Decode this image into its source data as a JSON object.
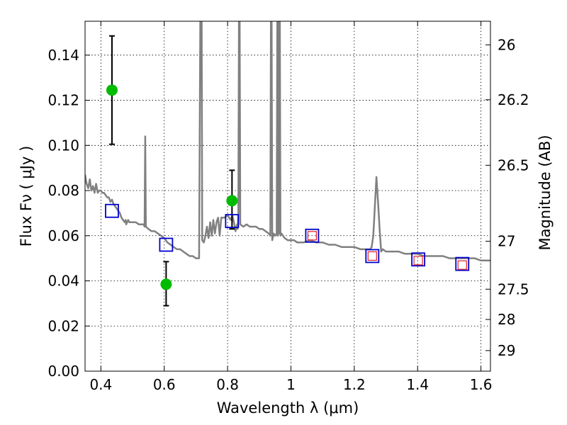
{
  "chart_data": {
    "type": "scatter",
    "title": "",
    "xlabel": "Wavelength  λ (μm)",
    "ylabel": "Flux  Fν  ( μJy )",
    "ylabel_right": "Magnitude (AB)",
    "xlim": [
      0.35,
      1.63
    ],
    "ylim": [
      0,
      0.155
    ],
    "grid": true,
    "x_ticks": [
      {
        "value": 0.4,
        "label": "0.4"
      },
      {
        "value": 0.6,
        "label": "0.6"
      },
      {
        "value": 0.8,
        "label": "0.8"
      },
      {
        "value": 1.0,
        "label": "1"
      },
      {
        "value": 1.2,
        "label": "1.2"
      },
      {
        "value": 1.4,
        "label": "1.4"
      },
      {
        "value": 1.6,
        "label": "1.6"
      }
    ],
    "y_ticks": [
      {
        "value": 0.0,
        "label": "0.00"
      },
      {
        "value": 0.02,
        "label": "0.02"
      },
      {
        "value": 0.04,
        "label": "0.04"
      },
      {
        "value": 0.06,
        "label": "0.06"
      },
      {
        "value": 0.08,
        "label": "0.08"
      },
      {
        "value": 0.1,
        "label": "0.10"
      },
      {
        "value": 0.12,
        "label": "0.12"
      },
      {
        "value": 0.14,
        "label": "0.14"
      }
    ],
    "right_ticks": [
      {
        "value": 26,
        "label": "26"
      },
      {
        "value": 26.2,
        "label": "26.2"
      },
      {
        "value": 26.5,
        "label": "26.5"
      },
      {
        "value": 27,
        "label": "27"
      },
      {
        "value": 27.5,
        "label": "27.5"
      },
      {
        "value": 28,
        "label": "28"
      },
      {
        "value": 29,
        "label": "29"
      }
    ],
    "series": [
      {
        "kind": "line",
        "color": "#808080",
        "points": [
          [
            0.35,
            0.087
          ],
          [
            0.355,
            0.083
          ],
          [
            0.36,
            0.081
          ],
          [
            0.365,
            0.085
          ],
          [
            0.37,
            0.08
          ],
          [
            0.375,
            0.082
          ],
          [
            0.38,
            0.079
          ],
          [
            0.385,
            0.083
          ],
          [
            0.39,
            0.079
          ],
          [
            0.395,
            0.08
          ],
          [
            0.4,
            0.08
          ],
          [
            0.405,
            0.079
          ],
          [
            0.41,
            0.079
          ],
          [
            0.415,
            0.078
          ],
          [
            0.42,
            0.077
          ],
          [
            0.425,
            0.077
          ],
          [
            0.43,
            0.075
          ],
          [
            0.435,
            0.076
          ],
          [
            0.44,
            0.074
          ],
          [
            0.445,
            0.073
          ],
          [
            0.45,
            0.072
          ],
          [
            0.455,
            0.071
          ],
          [
            0.46,
            0.07
          ],
          [
            0.465,
            0.068
          ],
          [
            0.47,
            0.067
          ],
          [
            0.475,
            0.066
          ],
          [
            0.478,
            0.067
          ],
          [
            0.48,
            0.065
          ],
          [
            0.483,
            0.066
          ],
          [
            0.486,
            0.067
          ],
          [
            0.49,
            0.066
          ],
          [
            0.5,
            0.066
          ],
          [
            0.51,
            0.066
          ],
          [
            0.52,
            0.065
          ],
          [
            0.53,
            0.065
          ],
          [
            0.535,
            0.065
          ],
          [
            0.538,
            0.064
          ],
          [
            0.54,
            0.104
          ],
          [
            0.542,
            0.064
          ],
          [
            0.55,
            0.063
          ],
          [
            0.56,
            0.062
          ],
          [
            0.57,
            0.062
          ],
          [
            0.58,
            0.061
          ],
          [
            0.59,
            0.06
          ],
          [
            0.6,
            0.059
          ],
          [
            0.61,
            0.057
          ],
          [
            0.62,
            0.056
          ],
          [
            0.63,
            0.055
          ],
          [
            0.64,
            0.054
          ],
          [
            0.65,
            0.054
          ],
          [
            0.66,
            0.053
          ],
          [
            0.67,
            0.052
          ],
          [
            0.68,
            0.051
          ],
          [
            0.69,
            0.051
          ],
          [
            0.7,
            0.05
          ],
          [
            0.705,
            0.05
          ],
          [
            0.71,
            0.05
          ],
          [
            0.714,
            0.16
          ],
          [
            0.718,
            0.16
          ],
          [
            0.72,
            0.058
          ],
          [
            0.725,
            0.057
          ],
          [
            0.73,
            0.06
          ],
          [
            0.735,
            0.064
          ],
          [
            0.74,
            0.059
          ],
          [
            0.745,
            0.066
          ],
          [
            0.75,
            0.06
          ],
          [
            0.755,
            0.067
          ],
          [
            0.76,
            0.061
          ],
          [
            0.765,
            0.066
          ],
          [
            0.77,
            0.068
          ],
          [
            0.775,
            0.06
          ],
          [
            0.78,
            0.068
          ],
          [
            0.79,
            0.068
          ],
          [
            0.8,
            0.069
          ],
          [
            0.81,
            0.067
          ],
          [
            0.815,
            0.069
          ],
          [
            0.82,
            0.066
          ],
          [
            0.825,
            0.062
          ],
          [
            0.83,
            0.065
          ],
          [
            0.832,
            0.063
          ],
          [
            0.834,
            0.07
          ],
          [
            0.836,
            0.16
          ],
          [
            0.838,
            0.16
          ],
          [
            0.84,
            0.065
          ],
          [
            0.85,
            0.064
          ],
          [
            0.86,
            0.065
          ],
          [
            0.87,
            0.064
          ],
          [
            0.88,
            0.064
          ],
          [
            0.89,
            0.064
          ],
          [
            0.9,
            0.063
          ],
          [
            0.91,
            0.063
          ],
          [
            0.92,
            0.062
          ],
          [
            0.93,
            0.061
          ],
          [
            0.935,
            0.06
          ],
          [
            0.937,
            0.16
          ],
          [
            0.939,
            0.16
          ],
          [
            0.941,
            0.058
          ],
          [
            0.945,
            0.061
          ],
          [
            0.95,
            0.06
          ],
          [
            0.955,
            0.061
          ],
          [
            0.957,
            0.16
          ],
          [
            0.959,
            0.06
          ],
          [
            0.961,
            0.16
          ],
          [
            0.963,
            0.061
          ],
          [
            0.965,
            0.16
          ],
          [
            0.967,
            0.06
          ],
          [
            0.97,
            0.061
          ],
          [
            0.975,
            0.06
          ],
          [
            0.98,
            0.059
          ],
          [
            0.99,
            0.058
          ],
          [
            1.0,
            0.058
          ],
          [
            1.01,
            0.058
          ],
          [
            1.02,
            0.057
          ],
          [
            1.04,
            0.057
          ],
          [
            1.06,
            0.058
          ],
          [
            1.08,
            0.057
          ],
          [
            1.1,
            0.057
          ],
          [
            1.12,
            0.056
          ],
          [
            1.14,
            0.056
          ],
          [
            1.16,
            0.055
          ],
          [
            1.18,
            0.055
          ],
          [
            1.2,
            0.055
          ],
          [
            1.22,
            0.054
          ],
          [
            1.24,
            0.054
          ],
          [
            1.25,
            0.054
          ],
          [
            1.255,
            0.055
          ],
          [
            1.26,
            0.06
          ],
          [
            1.265,
            0.073
          ],
          [
            1.27,
            0.086
          ],
          [
            1.275,
            0.075
          ],
          [
            1.28,
            0.063
          ],
          [
            1.285,
            0.053
          ],
          [
            1.29,
            0.054
          ],
          [
            1.3,
            0.053
          ],
          [
            1.32,
            0.053
          ],
          [
            1.34,
            0.053
          ],
          [
            1.36,
            0.052
          ],
          [
            1.38,
            0.052
          ],
          [
            1.4,
            0.052
          ],
          [
            1.42,
            0.051
          ],
          [
            1.44,
            0.051
          ],
          [
            1.46,
            0.051
          ],
          [
            1.48,
            0.051
          ],
          [
            1.5,
            0.05
          ],
          [
            1.52,
            0.05
          ],
          [
            1.54,
            0.05
          ],
          [
            1.56,
            0.05
          ],
          [
            1.58,
            0.05
          ],
          [
            1.6,
            0.049
          ],
          [
            1.63,
            0.049
          ]
        ]
      },
      {
        "kind": "points-circle",
        "color": "#00bb00",
        "points": [
          {
            "x": 0.435,
            "y": 0.1245,
            "ylo": 0.1005,
            "yhi": 0.1485
          },
          {
            "x": 0.606,
            "y": 0.0385,
            "ylo": 0.029,
            "yhi": 0.0485
          },
          {
            "x": 0.814,
            "y": 0.0755,
            "ylo": 0.063,
            "yhi": 0.089
          }
        ]
      },
      {
        "kind": "points-square",
        "color": "#0000cc",
        "points": [
          {
            "x": 0.435,
            "y": 0.071
          },
          {
            "x": 0.606,
            "y": 0.056
          },
          {
            "x": 0.814,
            "y": 0.0665
          },
          {
            "x": 1.067,
            "y": 0.06
          },
          {
            "x": 1.257,
            "y": 0.051
          },
          {
            "x": 1.402,
            "y": 0.0495
          },
          {
            "x": 1.541,
            "y": 0.0475
          }
        ]
      },
      {
        "kind": "points-square",
        "color": "#dd2222",
        "points": [
          {
            "x": 1.067,
            "y": 0.06
          },
          {
            "x": 1.257,
            "y": 0.051
          },
          {
            "x": 1.402,
            "y": 0.049
          },
          {
            "x": 1.541,
            "y": 0.047
          }
        ]
      }
    ]
  }
}
